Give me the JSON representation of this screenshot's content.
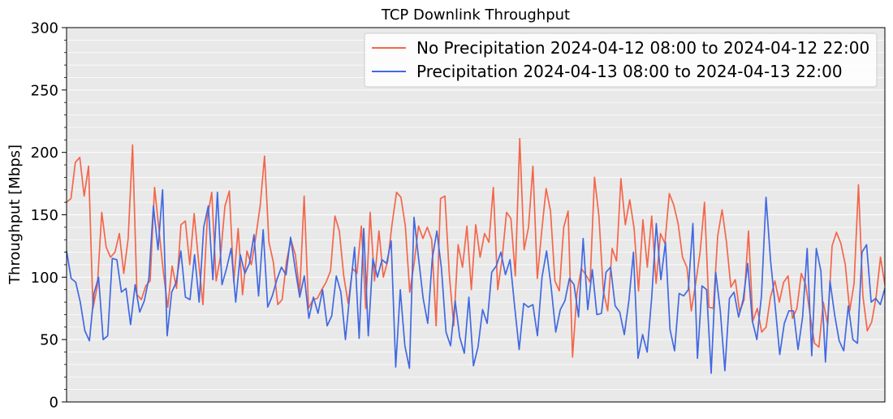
{
  "chart_data": {
    "type": "line",
    "title": "TCP Downlink Throughput",
    "xlabel": "",
    "ylabel": "Throughput [Mbps]",
    "ylim": [
      0,
      300
    ],
    "yticks": [
      0,
      50,
      100,
      150,
      200,
      250,
      300
    ],
    "yticks_minor": [
      10,
      20,
      30,
      40,
      60,
      70,
      80,
      90,
      110,
      120,
      130,
      140,
      160,
      170,
      180,
      190,
      210,
      220,
      230,
      240,
      260,
      270,
      280,
      290
    ],
    "xticks_visible": false,
    "grid": "horizontal",
    "background": "#e9e9e9",
    "legend_position": "top-right",
    "series": [
      {
        "name": "No Precipitation 2024-04-12 08:00 to 2024-04-12 22:00",
        "color": "#f4664a",
        "values": [
          160,
          163,
          192,
          196,
          165,
          189,
          75,
          93,
          152,
          124,
          116,
          120,
          135,
          103,
          131,
          206,
          86,
          82,
          93,
          97,
          172,
          138,
          104,
          76,
          109,
          91,
          142,
          145,
          110,
          151,
          113,
          78,
          148,
          168,
          97,
          117,
          157,
          169,
          96,
          139,
          86,
          121,
          110,
          132,
          157,
          197,
          128,
          112,
          78,
          82,
          113,
          130,
          118,
          88,
          165,
          75,
          82,
          83,
          90,
          96,
          105,
          149,
          137,
          101,
          79,
          107,
          103,
          141,
          75,
          152,
          97,
          137,
          100,
          113,
          143,
          168,
          164,
          141,
          88,
          111,
          141,
          131,
          140,
          130,
          61,
          163,
          165,
          102,
          61,
          126,
          108,
          141,
          90,
          142,
          116,
          135,
          128,
          172,
          90,
          115,
          152,
          147,
          101,
          211,
          122,
          140,
          189,
          99,
          137,
          171,
          153,
          97,
          89,
          140,
          153,
          36,
          87,
          107,
          102,
          96,
          180,
          149,
          89,
          73,
          123,
          113,
          179,
          142,
          162,
          139,
          89,
          146,
          108,
          149,
          95,
          135,
          127,
          167,
          158,
          143,
          116,
          108,
          73,
          95,
          120,
          160,
          76,
          75,
          133,
          154,
          128,
          92,
          98,
          72,
          82,
          137,
          65,
          75,
          56,
          60,
          84,
          97,
          80,
          96,
          101,
          67,
          75,
          103,
          94,
          70,
          47,
          44,
          80,
          62,
          125,
          136,
          127,
          110,
          73,
          95,
          174,
          85,
          57,
          64,
          84,
          116,
          94
        ],
        "x_range": [
          0,
          1
        ]
      },
      {
        "name": "Precipitation 2024-04-13 08:00 to 2024-04-13 22:00",
        "color": "#4169e1",
        "values": [
          121,
          99,
          96,
          80,
          57,
          49,
          87,
          100,
          50,
          53,
          115,
          114,
          88,
          91,
          62,
          94,
          72,
          81,
          99,
          157,
          122,
          170,
          53,
          88,
          96,
          121,
          84,
          82,
          118,
          80,
          140,
          157,
          98,
          168,
          94,
          107,
          123,
          80,
          118,
          103,
          111,
          134,
          85,
          138,
          76,
          85,
          98,
          108,
          102,
          132,
          107,
          84,
          101,
          67,
          84,
          71,
          90,
          61,
          69,
          101,
          88,
          50,
          88,
          124,
          51,
          139,
          53,
          115,
          100,
          114,
          111,
          129,
          28,
          90,
          45,
          27,
          148,
          115,
          83,
          63,
          115,
          137,
          107,
          56,
          45,
          81,
          52,
          39,
          84,
          29,
          44,
          74,
          63,
          104,
          109,
          120,
          102,
          114,
          77,
          42,
          79,
          76,
          78,
          53,
          100,
          121,
          92,
          56,
          74,
          81,
          99,
          94,
          68,
          131,
          74,
          106,
          70,
          71,
          104,
          108,
          77,
          72,
          54,
          81,
          120,
          35,
          54,
          40,
          84,
          143,
          98,
          128,
          58,
          41,
          87,
          85,
          90,
          143,
          35,
          93,
          90,
          23,
          104,
          73,
          25,
          83,
          88,
          68,
          82,
          111,
          65,
          50,
          85,
          164,
          113,
          77,
          38,
          63,
          73,
          73,
          42,
          68,
          123,
          37,
          123,
          105,
          32,
          97,
          70,
          49,
          41,
          77,
          50,
          47,
          120,
          126,
          80,
          83,
          78,
          91
        ],
        "x_range": [
          0,
          1
        ]
      }
    ]
  }
}
